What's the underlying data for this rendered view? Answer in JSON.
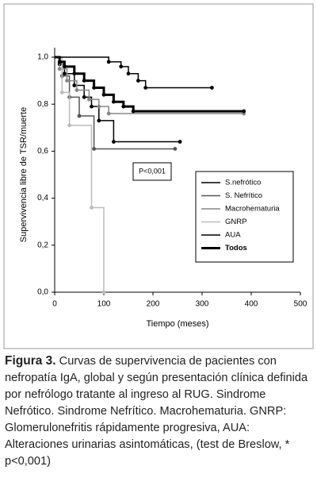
{
  "chart_data": {
    "type": "line",
    "step": true,
    "ylabel": "Supervivencia libre de TSR/muerte",
    "xlabel": "Tiempo (meses)",
    "annotation": "P<0,001",
    "xlim": [
      0,
      500
    ],
    "xticks": [
      0,
      100,
      200,
      300,
      400,
      500
    ],
    "ylim": [
      0,
      1
    ],
    "yticks": [
      {
        "value": 0,
        "label": "0,0"
      },
      {
        "value": 0.2,
        "label": "0,2"
      },
      {
        "value": 0.4,
        "label": "0,4"
      },
      {
        "value": 0.6,
        "label": "0,6"
      },
      {
        "value": 0.8,
        "label": "0,8"
      },
      {
        "value": 1,
        "label": "1,0"
      }
    ],
    "series": [
      {
        "name": "S.nefrótico",
        "color": "#000000",
        "width": 1.5,
        "x": [
          0,
          10,
          20,
          40,
          60,
          75,
          90,
          120,
          255
        ],
        "values": [
          1,
          0.97,
          0.93,
          0.88,
          0.83,
          0.79,
          0.73,
          0.64,
          0.64
        ]
      },
      {
        "name": "S. Nefrítico",
        "color": "#555555",
        "width": 1.5,
        "x": [
          0,
          15,
          30,
          50,
          80,
          245
        ],
        "values": [
          1,
          0.92,
          0.83,
          0.75,
          0.61,
          0.61
        ]
      },
      {
        "name": "Macrohematuria",
        "color": "#888888",
        "width": 1.5,
        "x": [
          0,
          10,
          25,
          45,
          70,
          90,
          110,
          385
        ],
        "values": [
          1,
          0.95,
          0.9,
          0.86,
          0.82,
          0.79,
          0.76,
          0.76
        ]
      },
      {
        "name": "GNRP",
        "color": "#bbbbbb",
        "width": 1.5,
        "x": [
          0,
          15,
          30,
          75,
          100
        ],
        "values": [
          1,
          0.85,
          0.71,
          0.36,
          0
        ]
      },
      {
        "name": "AUA",
        "color": "#000000",
        "width": 1.5,
        "x": [
          0,
          110,
          135,
          150,
          170,
          185,
          320
        ],
        "values": [
          1,
          0.98,
          0.96,
          0.93,
          0.9,
          0.87,
          0.87
        ]
      },
      {
        "name": "Todos",
        "color": "#000000",
        "width": 3,
        "bold": true,
        "x": [
          0,
          10,
          20,
          40,
          60,
          80,
          100,
          120,
          140,
          160,
          385
        ],
        "values": [
          1,
          0.98,
          0.96,
          0.93,
          0.9,
          0.87,
          0.84,
          0.81,
          0.79,
          0.77,
          0.77
        ]
      }
    ]
  },
  "figure": {
    "label": "Figura 3.",
    "caption": "Curvas de supervivencia de pacientes con nefropatía IgA, global y según presentación clínica definida por nefrólogo tratante al ingreso al RUG. Sindrome Nefrótico. Sindrome Nefrítico. Macrohematuria. GNRP: Glomerulonefritis rápidamente progresiva, AUA: Alteraciones urinarias asintomáticas, (test de Breslow, * p<0,001)"
  }
}
